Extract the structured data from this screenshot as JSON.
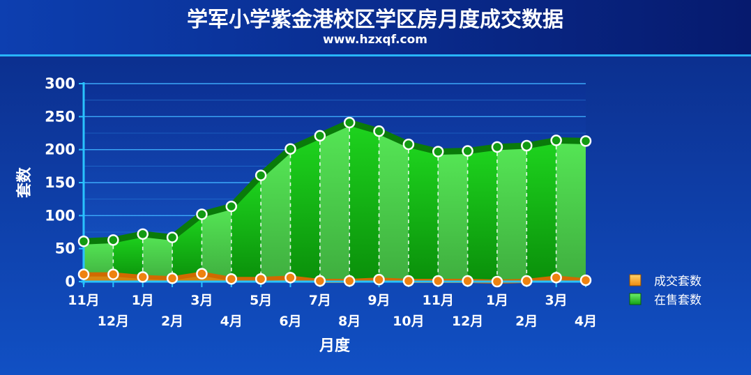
{
  "chart_data": {
    "type": "area",
    "title": "学军小学紫金港校区学区房月度成交数据",
    "subtitle": "www.hzxqf.com",
    "xlabel": "月度",
    "ylabel": "套数",
    "ylim": [
      0,
      300
    ],
    "yticks": [
      "0",
      "50",
      "100",
      "150",
      "200",
      "250",
      "300"
    ],
    "categories": [
      "11月",
      "12月",
      "1月",
      "2月",
      "3月",
      "4月",
      "5月",
      "6月",
      "7月",
      "8月",
      "9月",
      "10月",
      "11月",
      "12月",
      "1月",
      "2月",
      "3月",
      "4月"
    ],
    "grid": true,
    "legend_position": "right",
    "series": [
      {
        "name": "成交套数",
        "color": "#f08a10",
        "values": [
          11,
          11,
          7,
          5,
          12,
          4,
          4,
          6,
          1,
          1,
          3,
          1,
          1,
          1,
          0,
          1,
          6,
          2
        ]
      },
      {
        "name": "在售套数",
        "color": "#1db81d",
        "values": [
          61,
          63,
          72,
          67,
          102,
          114,
          161,
          201,
          221,
          241,
          228,
          208,
          197,
          198,
          204,
          206,
          214,
          213
        ]
      }
    ]
  }
}
